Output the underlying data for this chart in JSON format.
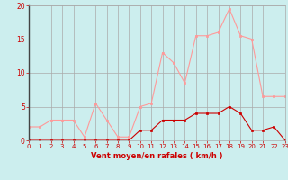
{
  "x": [
    0,
    1,
    2,
    3,
    4,
    5,
    6,
    7,
    8,
    9,
    10,
    11,
    12,
    13,
    14,
    15,
    16,
    17,
    18,
    19,
    20,
    21,
    22,
    23
  ],
  "rafales": [
    2,
    2,
    3,
    3,
    3,
    0.5,
    5.5,
    3,
    0.5,
    0.5,
    5,
    5.5,
    13,
    11.5,
    8.5,
    15.5,
    15.5,
    16,
    19.5,
    15.5,
    15,
    6.5,
    6.5,
    6.5
  ],
  "moyen": [
    0,
    0,
    0,
    0,
    0,
    0,
    0,
    0,
    0,
    0,
    1.5,
    1.5,
    3,
    3,
    3,
    4,
    4,
    4,
    5,
    4,
    1.5,
    1.5,
    2,
    0
  ],
  "line_color_rafales": "#FF9999",
  "line_color_moyen": "#CC0000",
  "marker_color_rafales": "#FF9999",
  "marker_color_moyen": "#CC0000",
  "bg_color": "#CCEEEE",
  "grid_color": "#AAAAAA",
  "xlabel": "Vent moyen/en rafales ( km/h )",
  "xlabel_color": "#CC0000",
  "tick_color": "#CC0000",
  "ylim": [
    0,
    20
  ],
  "xlim": [
    0,
    23
  ],
  "yticks": [
    0,
    5,
    10,
    15,
    20
  ],
  "xticks": [
    0,
    1,
    2,
    3,
    4,
    5,
    6,
    7,
    8,
    9,
    10,
    11,
    12,
    13,
    14,
    15,
    16,
    17,
    18,
    19,
    20,
    21,
    22,
    23
  ]
}
